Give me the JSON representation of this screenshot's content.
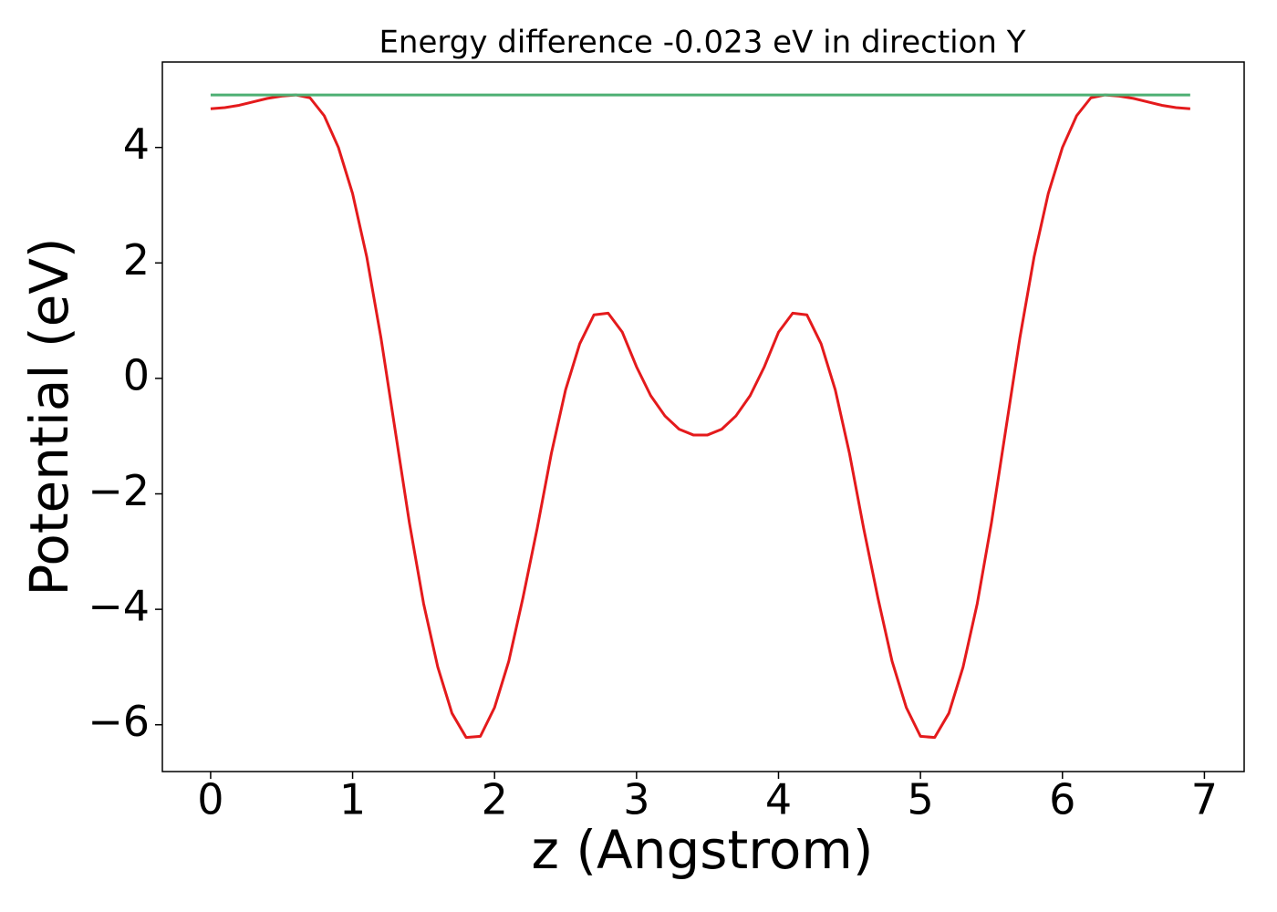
{
  "chart_data": {
    "type": "line",
    "title": "Energy difference -0.023 eV in direction Y",
    "xlabel": "z (Angstrom)",
    "ylabel": "Potential (eV)",
    "series": [
      {
        "color": "#e41a1c",
        "x": [
          0.0,
          0.1,
          0.2,
          0.3,
          0.4,
          0.5,
          0.6,
          0.7,
          0.8,
          0.9,
          1.0,
          1.1,
          1.2,
          1.3,
          1.4,
          1.5,
          1.6,
          1.7,
          1.8,
          1.9,
          2.0,
          2.1,
          2.2,
          2.3,
          2.4,
          2.5,
          2.6,
          2.7,
          2.8,
          2.9,
          3.0,
          3.1,
          3.2,
          3.3,
          3.4,
          3.5,
          3.6,
          3.7,
          3.8,
          3.9,
          4.0,
          4.1,
          4.2,
          4.3,
          4.4,
          4.5,
          4.6,
          4.7,
          4.8,
          4.9,
          5.0,
          5.1,
          5.2,
          5.3,
          5.4,
          5.5,
          5.6,
          5.7,
          5.8,
          5.9,
          6.0,
          6.1,
          6.2,
          6.3,
          6.4,
          6.5,
          6.6,
          6.7,
          6.8,
          6.9
        ],
        "values": [
          4.67,
          4.69,
          4.73,
          4.79,
          4.85,
          4.89,
          4.91,
          4.86,
          4.55,
          4.0,
          3.2,
          2.1,
          0.7,
          -0.9,
          -2.5,
          -3.9,
          -5.0,
          -5.8,
          -6.22,
          -6.2,
          -5.7,
          -4.9,
          -3.8,
          -2.6,
          -1.3,
          -0.2,
          0.6,
          1.1,
          1.13,
          0.8,
          0.2,
          -0.3,
          -0.65,
          -0.88,
          -0.98,
          -0.98,
          -0.88,
          -0.65,
          -0.3,
          0.2,
          0.8,
          1.13,
          1.1,
          0.6,
          -0.2,
          -1.3,
          -2.6,
          -3.8,
          -4.9,
          -5.7,
          -6.2,
          -6.22,
          -5.8,
          -5.0,
          -3.9,
          -2.5,
          -0.9,
          0.7,
          2.1,
          3.2,
          4.0,
          4.55,
          4.86,
          4.91,
          4.89,
          4.85,
          4.79,
          4.73,
          4.69,
          4.67
        ]
      },
      {
        "color": "#4daf73",
        "x": [
          0.0,
          6.9
        ],
        "values": [
          4.91,
          4.91
        ]
      }
    ],
    "xlim": [
      -0.34,
      7.28
    ],
    "ylim": [
      -6.81,
      5.48
    ],
    "xticks": [
      0,
      1,
      2,
      3,
      4,
      5,
      6,
      7
    ],
    "yticks": [
      {
        "value": -6,
        "label": "−6"
      },
      {
        "value": -4,
        "label": "−4"
      },
      {
        "value": -2,
        "label": "−2"
      },
      0,
      2,
      4
    ]
  }
}
